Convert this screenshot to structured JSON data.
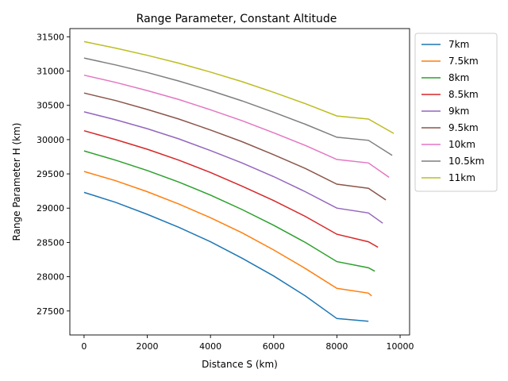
{
  "chart_data": {
    "type": "line",
    "title": "Range Parameter, Constant Altitude",
    "xlabel": "Distance S (km)",
    "ylabel": "Range Parameter H (km)",
    "xlim": [
      -450,
      10300
    ],
    "ylim": [
      27150,
      31620
    ],
    "xticks": [
      0,
      2000,
      4000,
      6000,
      8000,
      10000
    ],
    "yticks": [
      27500,
      28000,
      28500,
      29000,
      29500,
      30000,
      30500,
      31000,
      31500
    ],
    "grid": false,
    "legend_position": "outside-right-top",
    "series": [
      {
        "name": "7km",
        "color": "#1f77b4",
        "x": [
          0,
          1000,
          2000,
          3000,
          4000,
          5000,
          6000,
          7000,
          8000,
          9000
        ],
        "y": [
          29230,
          29085,
          28910,
          28720,
          28510,
          28270,
          28010,
          27720,
          27390,
          27350
        ]
      },
      {
        "name": "7.5km",
        "color": "#ff7f0e",
        "x": [
          0,
          1000,
          2000,
          3000,
          4000,
          5000,
          6000,
          7000,
          8000,
          9000,
          9100
        ],
        "y": [
          29535,
          29400,
          29240,
          29060,
          28860,
          28640,
          28390,
          28120,
          27830,
          27760,
          27720
        ]
      },
      {
        "name": "8km",
        "color": "#2ca02c",
        "x": [
          0,
          1000,
          2000,
          3000,
          4000,
          5000,
          6000,
          7000,
          8000,
          9000,
          9200
        ],
        "y": [
          29835,
          29700,
          29550,
          29380,
          29190,
          28980,
          28750,
          28500,
          28220,
          28130,
          28080
        ]
      },
      {
        "name": "8.5km",
        "color": "#d62728",
        "x": [
          0,
          1000,
          2000,
          3000,
          4000,
          5000,
          6000,
          7000,
          8000,
          9000,
          9300
        ],
        "y": [
          30130,
          30000,
          29860,
          29700,
          29520,
          29320,
          29110,
          28880,
          28620,
          28510,
          28430
        ]
      },
      {
        "name": "9km",
        "color": "#9467bd",
        "x": [
          0,
          1000,
          2000,
          3000,
          4000,
          5000,
          6000,
          7000,
          8000,
          9000,
          9450
        ],
        "y": [
          30405,
          30290,
          30160,
          30010,
          29840,
          29660,
          29460,
          29240,
          29000,
          28930,
          28780
        ]
      },
      {
        "name": "9.5km",
        "color": "#8c564b",
        "x": [
          0,
          1000,
          2000,
          3000,
          4000,
          5000,
          6000,
          7000,
          8000,
          9000,
          9550
        ],
        "y": [
          30680,
          30570,
          30440,
          30300,
          30140,
          29970,
          29780,
          29580,
          29350,
          29290,
          29120
        ]
      },
      {
        "name": "10km",
        "color": "#e377c2",
        "x": [
          0,
          1000,
          2000,
          3000,
          4000,
          5000,
          6000,
          7000,
          8000,
          9000,
          9650
        ],
        "y": [
          30940,
          30835,
          30715,
          30585,
          30435,
          30275,
          30100,
          29915,
          29710,
          29660,
          29450
        ]
      },
      {
        "name": "10.5km",
        "color": "#7f7f7f",
        "x": [
          0,
          1000,
          2000,
          3000,
          4000,
          5000,
          6000,
          7000,
          8000,
          9000,
          9750
        ],
        "y": [
          31190,
          31090,
          30980,
          30855,
          30715,
          30565,
          30400,
          30225,
          30035,
          29990,
          29770
        ]
      },
      {
        "name": "11km",
        "color": "#bcbd22",
        "x": [
          0,
          1000,
          2000,
          3000,
          4000,
          5000,
          6000,
          7000,
          8000,
          9000,
          9800
        ],
        "y": [
          31430,
          31335,
          31230,
          31115,
          30985,
          30845,
          30690,
          30525,
          30345,
          30300,
          30090
        ]
      }
    ]
  }
}
